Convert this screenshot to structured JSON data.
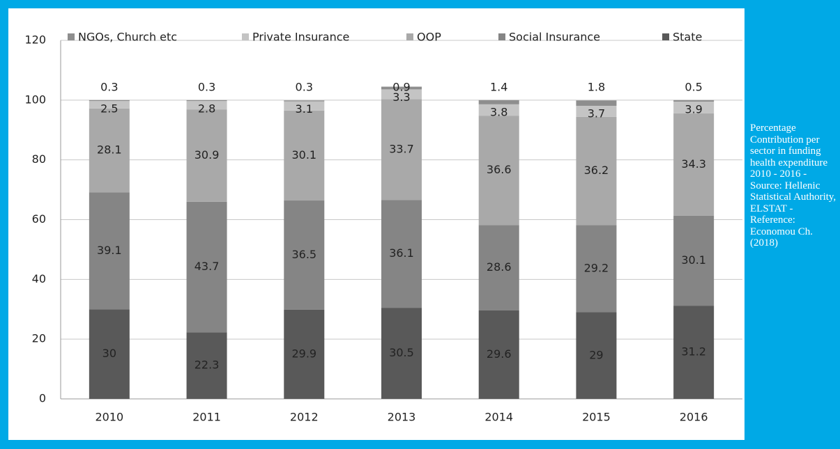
{
  "chart_data": {
    "type": "stacked_bar",
    "caption": "Percentage Contribution per sector in funding health expenditure 2010 - 2016 - Source: Hellenic Statistical Authority, ELSTAT - Reference: Economou Ch. (2018)",
    "categories": [
      "2010",
      "2011",
      "2012",
      "2013",
      "2014",
      "2015",
      "2016"
    ],
    "series": [
      {
        "name": "State",
        "color": "#595959",
        "values": [
          30,
          22.3,
          29.9,
          30.5,
          29.6,
          29,
          31.2
        ]
      },
      {
        "name": "Social Insurance",
        "color": "#858585",
        "values": [
          39.1,
          43.7,
          36.5,
          36.1,
          28.6,
          29.2,
          30.1
        ]
      },
      {
        "name": "OOP",
        "color": "#a9a9a9",
        "values": [
          28.1,
          30.9,
          30.1,
          33.7,
          36.6,
          36.2,
          34.3
        ]
      },
      {
        "name": "Private Insurance",
        "color": "#c4c4c4",
        "values": [
          2.5,
          2.8,
          3.1,
          3.3,
          3.8,
          3.7,
          3.9
        ]
      },
      {
        "name": "NGOs, Church etc",
        "color": "#8e8e8e",
        "values": [
          0.3,
          0.3,
          0.3,
          0.9,
          1.4,
          1.8,
          0.5
        ]
      }
    ],
    "ylim": [
      0,
      120
    ],
    "yticks": [
      0,
      20,
      40,
      60,
      80,
      100,
      120
    ],
    "grid": true,
    "legend": "top"
  }
}
